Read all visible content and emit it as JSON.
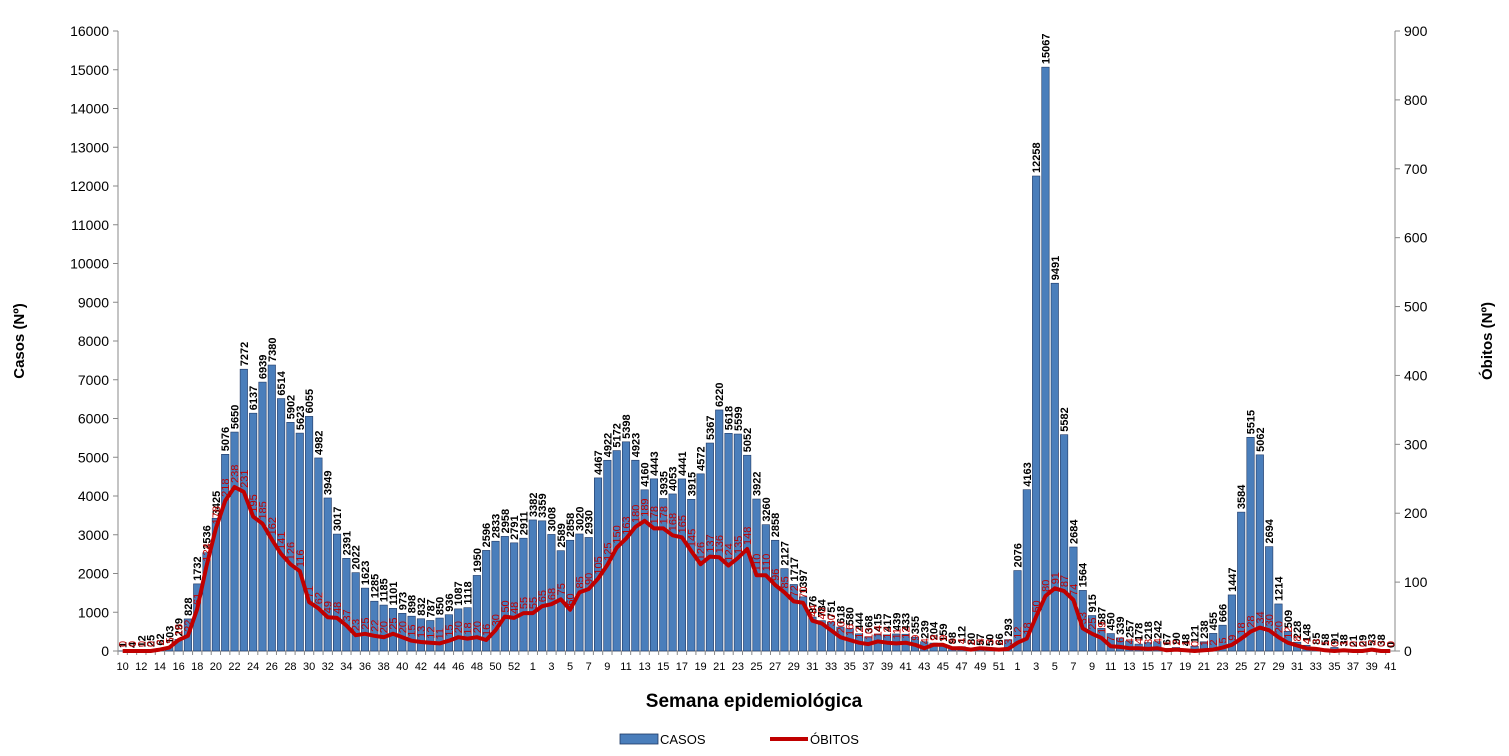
{
  "chart_data": {
    "type": "bar",
    "x_label": "Semana epidemiológica",
    "y_label": "Casos (Nº)",
    "y2_label": "Óbitos (Nº)",
    "categories": [
      "10",
      null,
      "12",
      null,
      "14",
      null,
      "16",
      null,
      "18",
      null,
      "20",
      null,
      "22",
      null,
      "24",
      null,
      "26",
      null,
      "28",
      null,
      "30",
      null,
      "32",
      null,
      "34",
      null,
      "36",
      null,
      "38",
      null,
      "40",
      null,
      "42",
      null,
      "44",
      null,
      "46",
      null,
      "48",
      null,
      "50",
      null,
      "52",
      null,
      "1",
      null,
      "3",
      null,
      "5",
      null,
      "7",
      null,
      "9",
      null,
      "11",
      null,
      "13",
      null,
      "15",
      null,
      "17",
      null,
      "19",
      null,
      "21",
      null,
      "23",
      null,
      "25",
      null,
      "27",
      null,
      "29",
      null,
      "31",
      null,
      "33",
      null,
      "35",
      null,
      "37",
      null,
      "39",
      null,
      "41",
      null,
      "43",
      null,
      "45",
      null,
      "47",
      null,
      "49",
      null,
      "51",
      null,
      "1",
      null,
      "3",
      null,
      "5",
      null,
      "7",
      null,
      "9",
      null,
      "11",
      null,
      "13",
      null,
      "15",
      null,
      "17",
      null,
      "19",
      null,
      "21",
      null,
      "23",
      null,
      "25",
      null,
      "27",
      null,
      "29",
      null,
      "31",
      null,
      "33",
      null,
      "35",
      null,
      "37",
      null,
      "39",
      null,
      "41"
    ],
    "series": [
      {
        "name": "CASOS",
        "type": "bar",
        "color": "#4a7ebb",
        "values": [
          1,
          4,
          12,
          25,
          62,
          103,
          299,
          828,
          1732,
          2536,
          3425,
          5076,
          5650,
          7272,
          6137,
          6939,
          7380,
          6514,
          5902,
          5623,
          6055,
          4982,
          3949,
          3017,
          2391,
          2022,
          1623,
          1285,
          1185,
          1101,
          973,
          898,
          832,
          787,
          850,
          936,
          1087,
          1118,
          1950,
          2596,
          2833,
          2958,
          2791,
          2911,
          3382,
          3359,
          3008,
          2589,
          2858,
          3020,
          2930,
          4467,
          4922,
          5172,
          5398,
          4923,
          4160,
          4443,
          3935,
          4053,
          4441,
          3915,
          4572,
          5367,
          6220,
          5618,
          5599,
          5052,
          3922,
          3260,
          2858,
          2127,
          1717,
          1397,
          876,
          784,
          751,
          618,
          580,
          444,
          368,
          415,
          417,
          439,
          433,
          355,
          239,
          204,
          159,
          98,
          112,
          80,
          57,
          50,
          66,
          293,
          2076,
          4163,
          12258,
          15067,
          9491,
          5582,
          2684,
          1564,
          915,
          587,
          450,
          339,
          257,
          178,
          218,
          242,
          67,
          90,
          48,
          121,
          238,
          455,
          666,
          1447,
          3584,
          5515,
          5062,
          2694,
          1214,
          509,
          228,
          148,
          85,
          58,
          91,
          38,
          21,
          29,
          53,
          38,
          0
        ]
      },
      {
        "name": "ÓBITOS",
        "type": "line",
        "axis": "y2",
        "color": "#c00000",
        "values": [
          0,
          0,
          0,
          0,
          2,
          5,
          16,
          22,
          61,
          124,
          178,
          218,
          238,
          231,
          195,
          185,
          162,
          141,
          126,
          116,
          71,
          62,
          49,
          48,
          37,
          23,
          25,
          22,
          20,
          25,
          20,
          15,
          13,
          12,
          11,
          15,
          20,
          18,
          20,
          16,
          30,
          50,
          48,
          55,
          55,
          65,
          68,
          75,
          60,
          85,
          90,
          105,
          125,
          150,
          163,
          180,
          189,
          178,
          178,
          168,
          165,
          145,
          126,
          137,
          136,
          124,
          135,
          148,
          110,
          110,
          96,
          85,
          72,
          70,
          44,
          40,
          30,
          20,
          16,
          12,
          10,
          14,
          12,
          11,
          12,
          9,
          4,
          9,
          9,
          4,
          4,
          2,
          4,
          3,
          2,
          3,
          12,
          18,
          50,
          80,
          91,
          87,
          74,
          33,
          25,
          19,
          7,
          6,
          4,
          4,
          3,
          4,
          1,
          2,
          1,
          0,
          1,
          2,
          5,
          9,
          18,
          28,
          34,
          30,
          20,
          12,
          8,
          4,
          3,
          1,
          0,
          1,
          0,
          0,
          2,
          0,
          0
        ]
      }
    ],
    "ylim": [
      0,
      16000
    ],
    "yticks": [
      0,
      1000,
      2000,
      3000,
      4000,
      5000,
      6000,
      7000,
      8000,
      9000,
      10000,
      11000,
      12000,
      13000,
      14000,
      15000,
      16000
    ],
    "y2lim": [
      0,
      900
    ],
    "y2ticks": [
      0,
      100,
      200,
      300,
      400,
      500,
      600,
      700,
      800,
      900
    ],
    "grid": false,
    "legend": "bottom"
  }
}
